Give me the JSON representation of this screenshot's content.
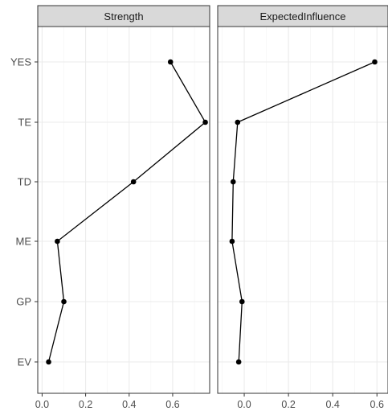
{
  "chart_data": {
    "type": "line",
    "categories": [
      "YES",
      "TE",
      "TD",
      "ME",
      "GP",
      "EV"
    ],
    "panels": [
      {
        "title": "Strength",
        "xlim": [
          -0.02,
          0.77
        ],
        "x_ticks": [
          0.0,
          0.2,
          0.4,
          0.6
        ],
        "x_tick_labels": [
          "0.0",
          "0.2",
          "0.4",
          "0.6"
        ],
        "values": [
          0.59,
          0.75,
          0.42,
          0.07,
          0.1,
          0.03
        ]
      },
      {
        "title": "ExpectedInfluence",
        "xlim": [
          -0.12,
          0.65
        ],
        "x_ticks": [
          0.0,
          0.2,
          0.4,
          0.6
        ],
        "x_tick_labels": [
          "0.0",
          "0.2",
          "0.4",
          "0.6"
        ],
        "values": [
          0.59,
          -0.03,
          -0.05,
          -0.055,
          -0.01,
          -0.025
        ]
      }
    ],
    "grid": true,
    "legend": "none"
  },
  "style": {
    "strip_fill": "#d9d9d9",
    "panel_border": "#333333",
    "grid_major": "#ebebeb",
    "grid_minor": "#f4f4f4",
    "line_color": "#000000",
    "point_color": "#000000",
    "text_color": "#4d4d4d"
  }
}
